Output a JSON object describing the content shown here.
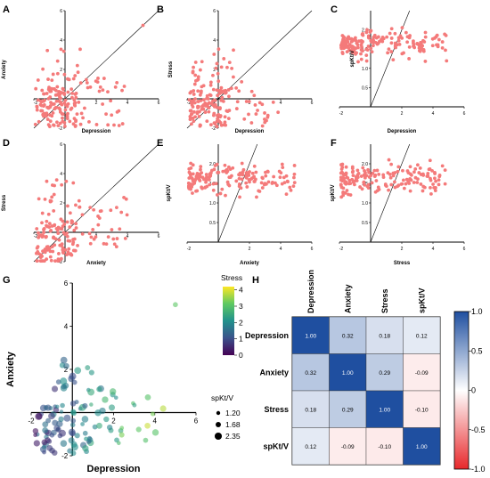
{
  "chart_data": [
    {
      "id": "A",
      "type": "scatter",
      "panel_label": "A",
      "xlabel": "Depression",
      "ylabel": "Anxiety",
      "xlim": [
        -2,
        6
      ],
      "ylim": [
        -2,
        6
      ],
      "xticks": [
        "-2",
        "2",
        "4",
        "6"
      ],
      "yticks": [
        "-2",
        "2",
        "4",
        "6"
      ],
      "ref_line": [
        [
          -2,
          -2
        ],
        [
          6,
          6
        ]
      ],
      "seed": 11,
      "gen": "dep_anx",
      "extra_points": [
        [
          5.0,
          5.0
        ]
      ]
    },
    {
      "id": "B",
      "type": "scatter",
      "panel_label": "B",
      "xlabel": "Depression",
      "ylabel": "Stress",
      "xlim": [
        -2,
        6
      ],
      "ylim": [
        -2,
        6
      ],
      "xticks": [
        "-2",
        "2",
        "4",
        "6"
      ],
      "yticks": [
        "-2",
        "2",
        "4",
        "6"
      ],
      "ref_line": [
        [
          -2,
          -2
        ],
        [
          6,
          6
        ]
      ],
      "seed": 23,
      "gen": "dep_str",
      "extra_points": []
    },
    {
      "id": "C",
      "type": "scatter",
      "panel_label": "C",
      "xlabel": "Depression",
      "ylabel": "spKt/V",
      "xlim": [
        -2,
        6
      ],
      "ylim": [
        0,
        2.5
      ],
      "xticks": [
        "-2",
        "2",
        "4",
        "6"
      ],
      "yticks": [
        "0.5",
        "1.0",
        "1.5",
        "2.0"
      ],
      "ref_line": [
        [
          0,
          0
        ],
        [
          2.5,
          2.5
        ]
      ],
      "seed": 37,
      "gen": "x_kt",
      "extra_points": []
    },
    {
      "id": "D",
      "type": "scatter",
      "panel_label": "D",
      "xlabel": "Anxiety",
      "ylabel": "Stress",
      "xlim": [
        -2,
        6
      ],
      "ylim": [
        -2,
        6
      ],
      "xticks": [
        "-2",
        "2",
        "4",
        "6"
      ],
      "yticks": [
        "-2",
        "2",
        "4",
        "6"
      ],
      "ref_line": [
        [
          -2,
          -2
        ],
        [
          6,
          6
        ]
      ],
      "seed": 41,
      "gen": "anx_str",
      "extra_points": []
    },
    {
      "id": "E",
      "type": "scatter",
      "panel_label": "E",
      "xlabel": "Anxiety",
      "ylabel": "spKt/V",
      "xlim": [
        -2,
        6
      ],
      "ylim": [
        0,
        2.5
      ],
      "xticks": [
        "-2",
        "2",
        "4",
        "6"
      ],
      "yticks": [
        "0.5",
        "1.0",
        "1.5",
        "2.0"
      ],
      "ref_line": [
        [
          0,
          0
        ],
        [
          2.5,
          2.5
        ]
      ],
      "seed": 53,
      "gen": "x_kt",
      "extra_points": []
    },
    {
      "id": "F",
      "type": "scatter",
      "panel_label": "F",
      "xlabel": "Stress",
      "ylabel": "spKt/V",
      "xlim": [
        -2,
        6
      ],
      "ylim": [
        0,
        2.5
      ],
      "xticks": [
        "-2",
        "2",
        "4",
        "6"
      ],
      "yticks": [
        "0.5",
        "1.0",
        "1.5",
        "2.0"
      ],
      "ref_line": [
        [
          0,
          0
        ],
        [
          2.5,
          2.5
        ]
      ],
      "seed": 67,
      "gen": "x_kt",
      "extra_points": []
    },
    {
      "id": "G",
      "type": "scatter",
      "panel_label": "G",
      "xlabel": "Depression",
      "ylabel": "Anxiety",
      "xlim": [
        -2,
        6
      ],
      "ylim": [
        -2,
        6
      ],
      "xticks": [
        "-2",
        "2",
        "4",
        "6"
      ],
      "yticks": [
        "-2",
        "2",
        "4",
        "6"
      ],
      "color_by": "Stress",
      "colorbar_title": "Stress",
      "colorbar_ticks": [
        "0",
        "1",
        "2",
        "3",
        "4"
      ],
      "colorbar_range": [
        0,
        4.2
      ],
      "size_by": "spKt/V",
      "size_legend_title": "spKt/V",
      "size_legend": [
        "1.20",
        "1.68",
        "2.35"
      ],
      "seed": 89,
      "gen": "dep_anx_g"
    },
    {
      "id": "H",
      "type": "heatmap",
      "panel_label": "H",
      "variables": [
        "Depression",
        "Anxiety",
        "Stress",
        "spKt/V"
      ],
      "matrix": [
        [
          1.0,
          0.32,
          0.18,
          0.12
        ],
        [
          0.32,
          1.0,
          0.29,
          -0.09
        ],
        [
          0.18,
          0.29,
          1.0,
          -0.1
        ],
        [
          0.12,
          -0.09,
          -0.1,
          1.0
        ]
      ],
      "cell_labels": [
        [
          "1.00",
          "0.32",
          "0.18",
          "0.12"
        ],
        [
          "0.32",
          "1.00",
          "0.29",
          "-0.09"
        ],
        [
          "0.18",
          "0.29",
          "1.00",
          "-0.10"
        ],
        [
          "0.12",
          "-0.09",
          "-0.10",
          "1.00"
        ]
      ],
      "colorbar_ticks": [
        "1.0",
        "0.5",
        "0",
        "-0.5",
        "-1.0"
      ],
      "colorbar_range": [
        -1,
        1
      ]
    }
  ],
  "colors": {
    "scatter_point": "#f47a7a",
    "positive": "#1f4fa0",
    "negative": "#e8282b",
    "neutral": "#ffffff"
  }
}
